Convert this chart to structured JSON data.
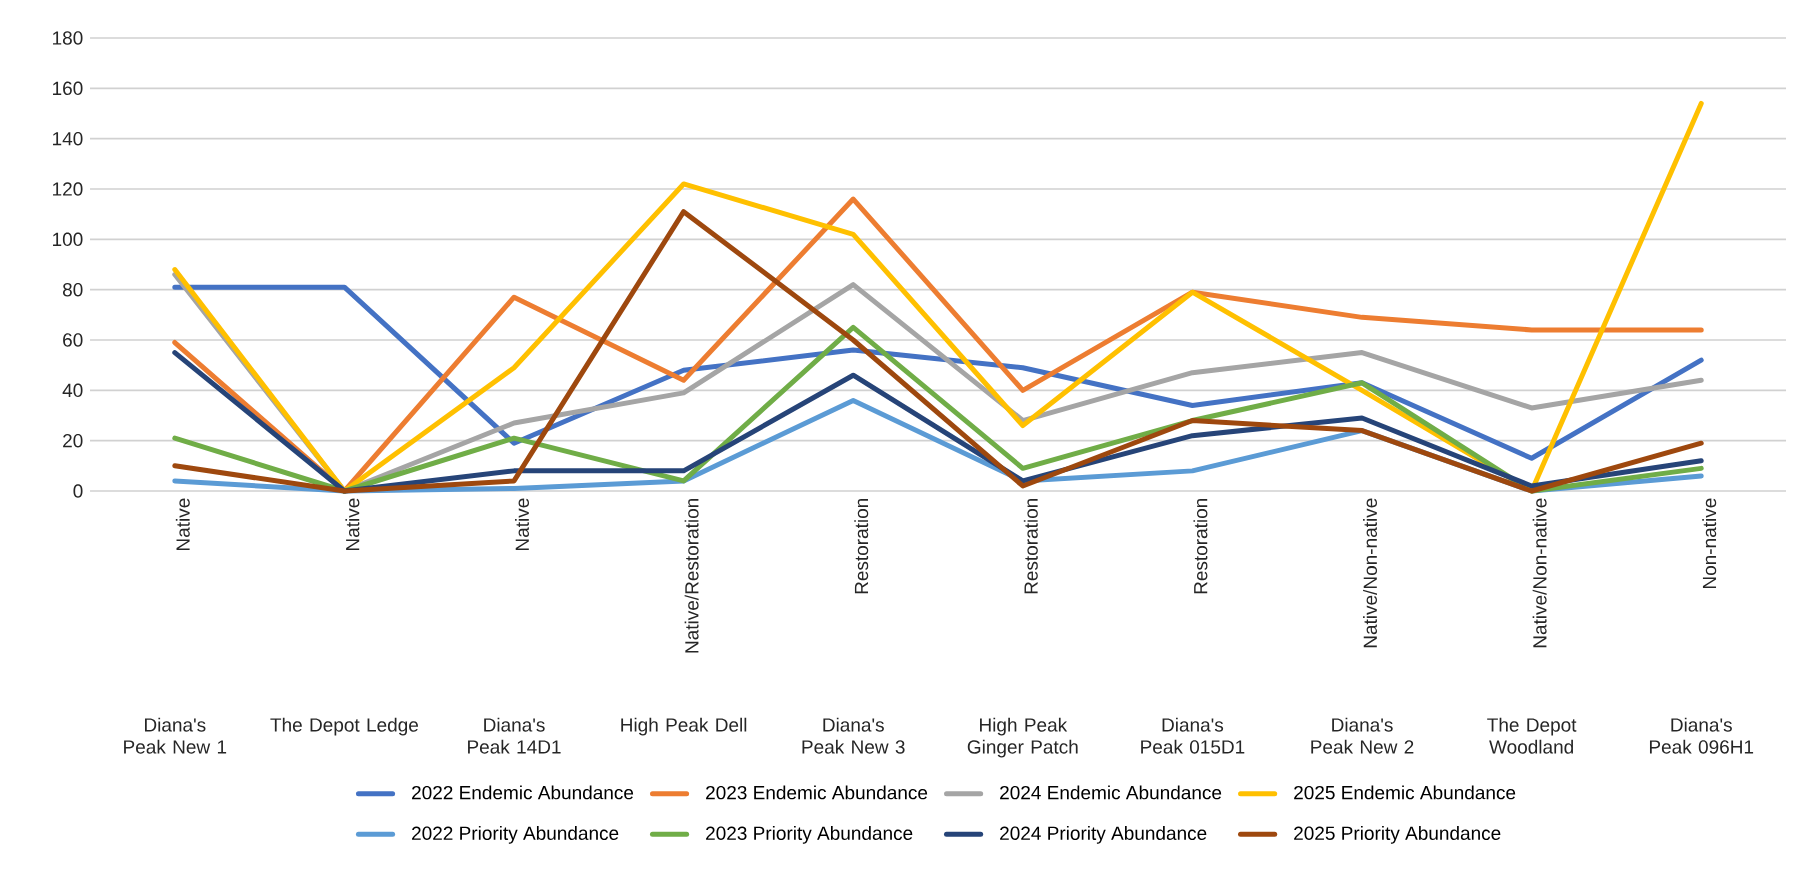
{
  "chart_data": {
    "type": "line",
    "categories": [
      "Native",
      "Native",
      "Native",
      "Native/Restoration",
      "Restoration",
      "Restoration",
      "Restoration",
      "Native/Non-native",
      "Native/Non-native",
      "Non-native"
    ],
    "annotations": [
      "Diana's Peak New 1",
      "The Depot Ledge",
      "Diana's Peak 14D1",
      "High Peak Dell",
      "Diana's Peak New 3",
      "High Peak Ginger Patch",
      "Diana's Peak 015D1",
      "Diana's Peak New 2",
      "The Depot Woodland",
      "Diana's Peak 096H1"
    ],
    "series": [
      {
        "name": "2022 Endemic Abundance",
        "color": "#4472c4",
        "values": [
          81,
          81,
          19,
          48,
          56,
          49,
          34,
          43,
          13,
          52
        ]
      },
      {
        "name": "2023 Endemic Abundance",
        "color": "#ed7d31",
        "values": [
          59,
          0,
          77,
          44,
          116,
          40,
          79,
          69,
          64,
          64
        ]
      },
      {
        "name": "2024 Endemic Abundance",
        "color": "#a5a5a5",
        "values": [
          86,
          0,
          27,
          39,
          82,
          28,
          47,
          55,
          33,
          44
        ]
      },
      {
        "name": "2025 Endemic Abundance",
        "color": "#ffc000",
        "values": [
          88,
          0,
          49,
          122,
          102,
          26,
          79,
          40,
          0,
          154
        ]
      },
      {
        "name": "2022 Priority Abundance",
        "color": "#5b9bd5",
        "values": [
          4,
          0,
          1,
          4,
          36,
          4,
          8,
          24,
          0,
          6
        ]
      },
      {
        "name": "2023 Priority Abundance",
        "color": "#70ad47",
        "values": [
          21,
          0,
          21,
          4,
          65,
          9,
          28,
          43,
          0,
          9
        ]
      },
      {
        "name": "2024 Priority Abundance",
        "color": "#264478",
        "values": [
          55,
          0,
          8,
          8,
          46,
          4,
          22,
          29,
          2,
          12
        ]
      },
      {
        "name": "2025 Priority Abundance",
        "color": "#9e480e",
        "values": [
          10,
          0,
          4,
          111,
          60,
          2,
          28,
          24,
          0,
          19
        ]
      }
    ],
    "ylim": [
      0,
      180
    ],
    "yticks": [
      0,
      20,
      40,
      60,
      80,
      100,
      120,
      140,
      160,
      180
    ],
    "grid": "y",
    "legend": "bottom",
    "marker": "none",
    "line_style": "solid"
  }
}
